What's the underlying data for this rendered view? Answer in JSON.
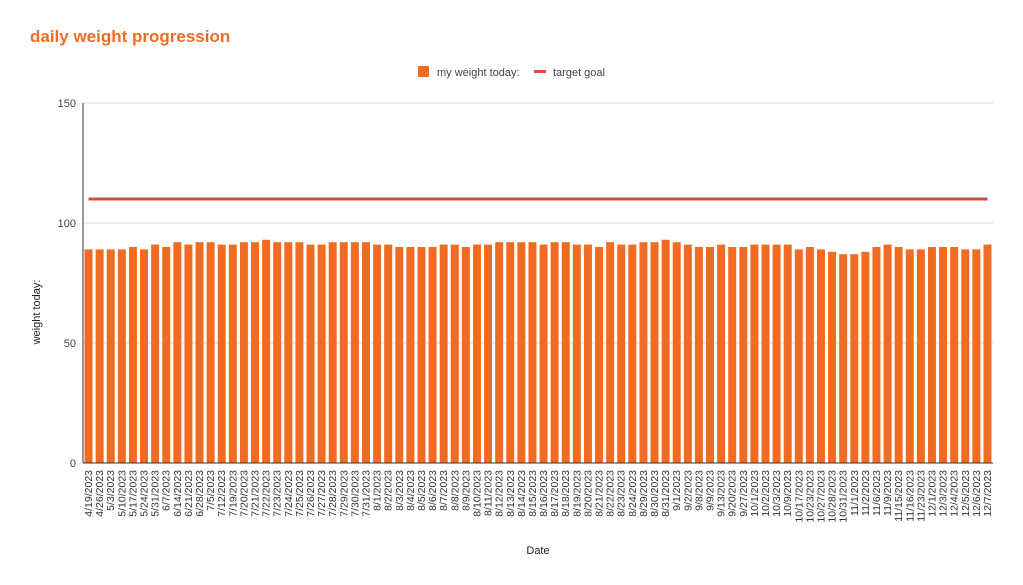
{
  "chart_data": {
    "type": "bar",
    "title": "daily weight progression",
    "xlabel": "Date",
    "ylabel": "weight today:",
    "ylim": [
      0,
      150
    ],
    "yticks": [
      0,
      50,
      100,
      150
    ],
    "grid": true,
    "legend_position": "top-center",
    "categories": [
      "4/19/2023",
      "4/26/2023",
      "5/3/2023",
      "5/10/2023",
      "5/17/2023",
      "5/24/2023",
      "5/31/2023",
      "6/7/2023",
      "6/14/2023",
      "6/21/2023",
      "6/28/2023",
      "7/5/2023",
      "7/12/2023",
      "7/19/2023",
      "7/20/2023",
      "7/21/2023",
      "7/22/2023",
      "7/23/2023",
      "7/24/2023",
      "7/25/2023",
      "7/26/2023",
      "7/27/2023",
      "7/28/2023",
      "7/29/2023",
      "7/30/2023",
      "7/31/2023",
      "8/1/2023",
      "8/2/2023",
      "8/3/2023",
      "8/4/2023",
      "8/5/2023",
      "8/6/2023",
      "8/7/2023",
      "8/8/2023",
      "8/9/2023",
      "8/10/2023",
      "8/11/2023",
      "8/12/2023",
      "8/13/2023",
      "8/14/2023",
      "8/15/2023",
      "8/16/2023",
      "8/17/2023",
      "8/18/2023",
      "8/19/2023",
      "8/20/2023",
      "8/21/2023",
      "8/22/2023",
      "8/23/2023",
      "8/24/2023",
      "8/29/2023",
      "8/30/2023",
      "8/31/2023",
      "9/1/2023",
      "9/2/2023",
      "9/8/2023",
      "9/9/2023",
      "9/13/2023",
      "9/20/2023",
      "9/27/2023",
      "10/1/2023",
      "10/2/2023",
      "10/3/2023",
      "10/9/2023",
      "10/17/2023",
      "10/23/2023",
      "10/27/2023",
      "10/28/2023",
      "10/31/2023",
      "11/1/2023",
      "11/2/2023",
      "11/6/2023",
      "11/9/2023",
      "11/15/2023",
      "11/16/2023",
      "11/23/2023",
      "12/1/2023",
      "12/3/2023",
      "12/4/2023",
      "12/5/2023",
      "12/6/2023",
      "12/7/2023"
    ],
    "series": [
      {
        "name": "my weight today:",
        "kind": "bar",
        "color": "#f26b22",
        "values": [
          89,
          89,
          89,
          89,
          90,
          89,
          91,
          90,
          92,
          91,
          92,
          92,
          91,
          91,
          92,
          92,
          93,
          92,
          92,
          92,
          91,
          91,
          92,
          92,
          92,
          92,
          91,
          91,
          90,
          90,
          90,
          90,
          91,
          91,
          90,
          91,
          91,
          92,
          92,
          92,
          92,
          91,
          92,
          92,
          91,
          91,
          90,
          92,
          91,
          91,
          92,
          92,
          93,
          92,
          91,
          90,
          90,
          91,
          90,
          90,
          91,
          91,
          91,
          91,
          89,
          90,
          89,
          88,
          87,
          87,
          88,
          90,
          91,
          90,
          89,
          89,
          90,
          90,
          90,
          89,
          89,
          91
        ]
      },
      {
        "name": "target goal",
        "kind": "line",
        "color": "#dd4b32",
        "values": [
          110,
          110,
          110,
          110,
          110,
          110,
          110,
          110,
          110,
          110,
          110,
          110,
          110,
          110,
          110,
          110,
          110,
          110,
          110,
          110,
          110,
          110,
          110,
          110,
          110,
          110,
          110,
          110,
          110,
          110,
          110,
          110,
          110,
          110,
          110,
          110,
          110,
          110,
          110,
          110,
          110,
          110,
          110,
          110,
          110,
          110,
          110,
          110,
          110,
          110,
          110,
          110,
          110,
          110,
          110,
          110,
          110,
          110,
          110,
          110,
          110,
          110,
          110,
          110,
          110,
          110,
          110,
          110,
          110,
          110,
          110,
          110,
          110,
          110,
          110,
          110,
          110,
          110,
          110,
          110,
          110,
          110
        ]
      }
    ]
  },
  "colors": {
    "title": "#f26b22",
    "bar": "#f26b22",
    "goal_line": "#dd4b32",
    "gridline": "#d9d9d9",
    "axis": "#333333"
  }
}
